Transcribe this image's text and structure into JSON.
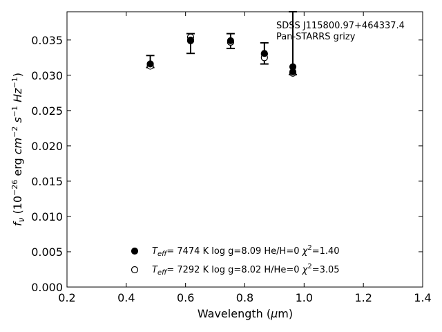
{
  "chart_data": {
    "type": "scatter",
    "title": "",
    "xlabel": "Wavelength (μm)",
    "ylabel": "f_ν (10^-26 erg cm^-2 s^-1 Hz^-1)",
    "xlim": [
      0.2,
      1.4
    ],
    "ylim": [
      0.0,
      0.039
    ],
    "xticks": [
      "0.2",
      "0.4",
      "0.6",
      "0.8",
      "1.0",
      "1.2",
      "1.4"
    ],
    "yticks": [
      "0.000",
      "0.005",
      "0.010",
      "0.015",
      "0.020",
      "0.025",
      "0.030",
      "0.035"
    ],
    "grid": false,
    "annotation": [
      "SDSS J115800.97+464337.4",
      "Pan-STARRS grizy"
    ],
    "observed": {
      "x": [
        0.481,
        0.617,
        0.752,
        0.866,
        0.962
      ],
      "y": [
        0.0316,
        0.035,
        0.0349,
        0.0331,
        0.0305
      ],
      "yerr_low": [
        0.0311,
        0.0331,
        0.0338,
        0.0316,
        0.0301
      ],
      "yerr_high": [
        0.0328,
        0.0359,
        0.0359,
        0.0346,
        0.039
      ]
    },
    "series": [
      {
        "name": "T_eff= 7474 K log g=8.09 He/H=0 χ²=1.40",
        "marker": "filled-circle",
        "x": [
          0.481,
          0.617,
          0.752,
          0.866,
          0.962
        ],
        "y": [
          0.0316,
          0.0349,
          0.0347,
          0.033,
          0.0312
        ]
      },
      {
        "name": "T_eff= 7292 K log g=8.02 H/He=0 χ²=3.05",
        "marker": "open-circle",
        "x": [
          0.481,
          0.617,
          0.752,
          0.866,
          0.962
        ],
        "y": [
          0.0313,
          0.0354,
          0.0347,
          0.0325,
          0.0303
        ]
      }
    ],
    "legend_placement": "lower-center",
    "legend": [
      {
        "marker": "filled-circle",
        "teff_label": "T",
        "teff_sub": "eff",
        "text": "=  7474 K  log g=8.09  He/H=0  ",
        "chi": "χ",
        "chi_sup": "2",
        "chi_val": "=1.40"
      },
      {
        "marker": "open-circle",
        "teff_label": "T",
        "teff_sub": "eff",
        "text": "=  7292 K  log g=8.02  H/He=0  ",
        "chi": "χ",
        "chi_sup": "2",
        "chi_val": "=3.05"
      }
    ]
  }
}
